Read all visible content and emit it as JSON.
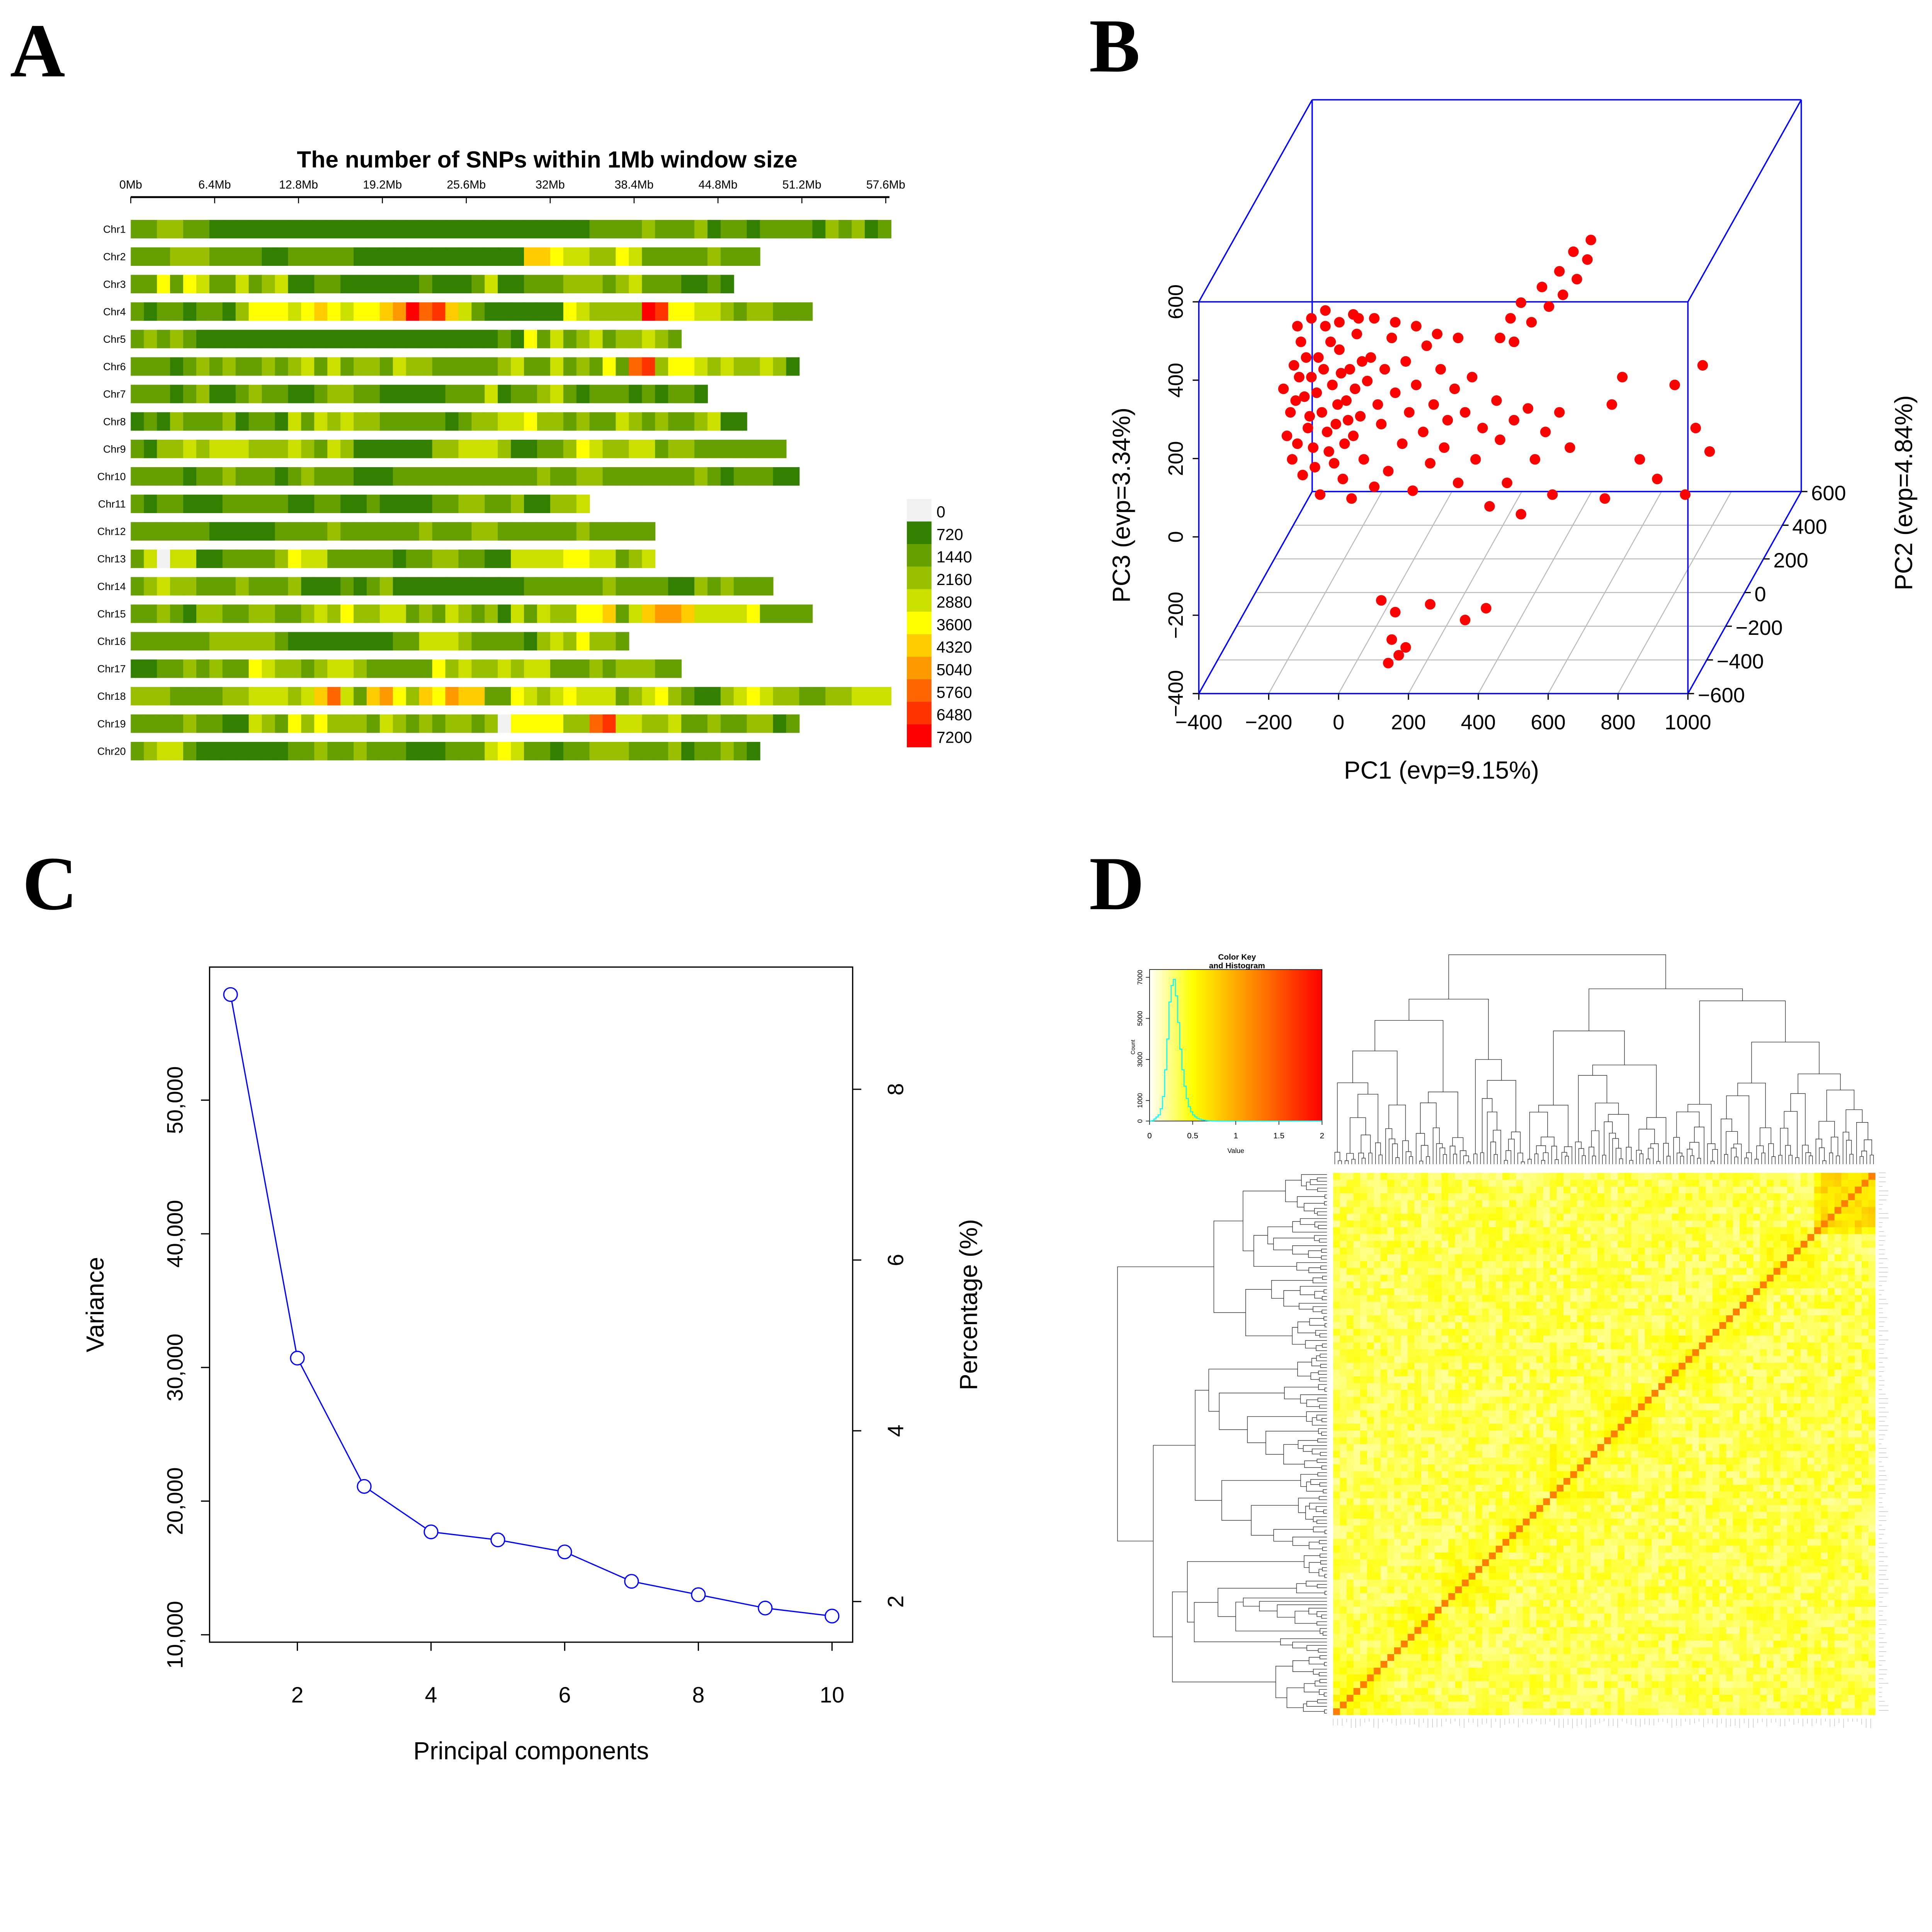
{
  "panels": {
    "a": "A",
    "b": "B",
    "c": "C",
    "d": "D"
  },
  "chart_data": [
    {
      "type": "heatmap",
      "panel": "A",
      "title": "The number of SNPs within 1Mb window size",
      "x_ticks": [
        "0Mb",
        "6.4Mb",
        "12.8Mb",
        "19.2Mb",
        "25.6Mb",
        "32Mb",
        "38.4Mb",
        "44.8Mb",
        "51.2Mb",
        "57.6Mb"
      ],
      "x_tick_values_mb": [
        0,
        6.4,
        12.8,
        19.2,
        25.6,
        32,
        38.4,
        44.8,
        51.2,
        57.6
      ],
      "window_mb": 1,
      "legend": {
        "labels": [
          "0",
          "720",
          "1440",
          "2160",
          "2880",
          "3600",
          "4320",
          "5040",
          "5760",
          "6480",
          "7200"
        ],
        "colors": [
          "#f2f2f2",
          "#338000",
          "#66a000",
          "#99c000",
          "#cce000",
          "#ffff00",
          "#ffcc00",
          "#ff9900",
          "#ff6600",
          "#ff3300",
          "#ff0000"
        ]
      },
      "level_encoding": "one character per 1Mb window; digit = legend level index, a = 10",
      "chromosomes": [
        {
          "name": "Chr1",
          "bins": "2233221111111111111111111111111111122223222312212222132312"
        },
        {
          "name": "Chr2",
          "bins": "222333222211222221111111111111665443354222223222"
        },
        {
          "name": "Chr3",
          "bins": "2252542242341122111111211124112223332342221121"
        },
        {
          "name": "Chr4",
          "bins": "212212213555456545567a89642111111543333a955443233222"
        },
        {
          "name": "Chr5",
          "bins": "232321111111111111111111111121524234233432"
        },
        {
          "name": "Chr6",
          "bins": "222123232232342423324332222234224232528935543433431"
        },
        {
          "name": "Chr7",
          "bins": "22212311232211233221111122241223421222121221"
        },
        {
          "name": "Chr8",
          "bins": "12132223122142434332222212334453323224323223411"
        },
        {
          "name": "Chr9",
          "bins": "21334344433343243111111334443112235433442332222222"
        },
        {
          "name": "Chr10",
          "bins": "222212232221232221112222222222232233222222232122211"
        },
        {
          "name": "Chr11",
          "bins": "21221112222211221121111223322311334"
        },
        {
          "name": "Chr12",
          "bins": "2222221111122223222222322233222222322222"
        },
        {
          "name": "Chr13",
          "bins": "2404411222235442222212233221144445544234"
        },
        {
          "name": "Chr14",
          "bins": "2343322232223111212311111111112222223222211323222"
        },
        {
          "name": "Chr15",
          "bins": "2232133223322343533442324323142433556246776444452222"
        },
        {
          "name": "Chr16",
          "bins": "22222233333211111111224443222213435332"
        },
        {
          "name": "Chr17",
          "bins": "112232322543323443222225343343442223233322"
        },
        {
          "name": "Chr18",
          "bins": "3332222334443468426753657662254345444234532113454332233444"
        },
        {
          "name": "Chr19",
          "bins": "222232211432535333243232332305555338944334223223312"
        },
        {
          "name": "Chr20",
          "bins": "234421111111223223222111222454221223332223122321"
        }
      ]
    },
    {
      "type": "scatter",
      "panel": "B",
      "subtype": "3d",
      "xlabel": "PC1 (evp=9.15%)",
      "ylabel": "PC2 (evp=4.84%)",
      "zlabel": "PC3 (evp=3.34%)",
      "xlim": [
        -400,
        1000
      ],
      "ylim": [
        -600,
        600
      ],
      "zlim": [
        -400,
        600
      ],
      "x_ticks": [
        "−400",
        "−200",
        "0",
        "200",
        "400",
        "600",
        "800",
        "1000"
      ],
      "x_tick_values": [
        -400,
        -200,
        0,
        200,
        400,
        600,
        800,
        1000
      ],
      "y_ticks": [
        "−600",
        "−400",
        "−200",
        "0",
        "200",
        "400",
        "600"
      ],
      "y_tick_values": [
        -600,
        -400,
        -200,
        0,
        200,
        400,
        600
      ],
      "z_ticks": [
        "−400",
        "−200",
        "0",
        "200",
        "400",
        "600"
      ],
      "z_tick_values": [
        -400,
        -200,
        0,
        200,
        400,
        600
      ],
      "point_color": "#ff0000",
      "box_color": "#0000ff",
      "points_pc1_pc2_pc3": [
        [
          -320,
          0,
          120
        ],
        [
          -300,
          0,
          60
        ],
        [
          -290,
          0,
          180
        ],
        [
          -280,
          0,
          -20
        ],
        [
          -270,
          0,
          240
        ],
        [
          -260,
          0,
          100
        ],
        [
          -250,
          0,
          20
        ],
        [
          -240,
          0,
          150
        ],
        [
          -230,
          0,
          -80
        ],
        [
          -220,
          0,
          200
        ],
        [
          -210,
          0,
          60
        ],
        [
          -200,
          0,
          280
        ],
        [
          -190,
          0,
          -40
        ],
        [
          -180,
          0,
          130
        ],
        [
          -170,
          0,
          30
        ],
        [
          -160,
          0,
          220
        ],
        [
          -150,
          0,
          -110
        ],
        [
          -140,
          0,
          90
        ],
        [
          -130,
          0,
          170
        ],
        [
          -120,
          0,
          0
        ],
        [
          -110,
          0,
          260
        ],
        [
          -100,
          0,
          50
        ],
        [
          -90,
          0,
          -60
        ],
        [
          -80,
          0,
          140
        ],
        [
          -70,
          0,
          200
        ],
        [
          -60,
          0,
          -130
        ],
        [
          -50,
          0,
          80
        ],
        [
          -40,
          0,
          30
        ],
        [
          -30,
          0,
          170
        ],
        [
          -20,
          0,
          -90
        ],
        [
          -10,
          0,
          250
        ],
        [
          0,
          0,
          110
        ],
        [
          20,
          0,
          -20
        ],
        [
          30,
          0,
          190
        ],
        [
          40,
          0,
          60
        ],
        [
          50,
          0,
          -140
        ],
        [
          60,
          0,
          130
        ],
        [
          80,
          0,
          10
        ],
        [
          90,
          0,
          230
        ],
        [
          100,
          0,
          -70
        ],
        [
          110,
          0,
          80
        ],
        [
          130,
          0,
          170
        ],
        [
          140,
          0,
          -30
        ],
        [
          150,
          0,
          40
        ],
        [
          170,
          0,
          120
        ],
        [
          180,
          0,
          -120
        ],
        [
          200,
          0,
          60
        ],
        [
          220,
          0,
          150
        ],
        [
          230,
          0,
          -60
        ],
        [
          250,
          0,
          20
        ],
        [
          270,
          0,
          -180
        ],
        [
          290,
          0,
          90
        ],
        [
          300,
          0,
          -10
        ],
        [
          320,
          0,
          -120
        ],
        [
          340,
          0,
          40
        ],
        [
          360,
          0,
          -200
        ],
        [
          380,
          0,
          70
        ],
        [
          400,
          0,
          -60
        ],
        [
          430,
          0,
          10
        ],
        [
          450,
          0,
          -150
        ],
        [
          470,
          0,
          60
        ],
        [
          500,
          0,
          -30
        ],
        [
          -310,
          0,
          0
        ],
        [
          -295,
          0,
          -60
        ],
        [
          -285,
          0,
          90
        ],
        [
          -275,
          0,
          150
        ],
        [
          -265,
          0,
          -100
        ],
        [
          -255,
          0,
          200
        ],
        [
          -245,
          0,
          50
        ],
        [
          -235,
          0,
          -30
        ],
        [
          -225,
          0,
          110
        ],
        [
          -215,
          0,
          -150
        ],
        [
          -205,
          0,
          170
        ],
        [
          -195,
          0,
          10
        ],
        [
          -185,
          0,
          240
        ],
        [
          -175,
          0,
          -70
        ],
        [
          -165,
          0,
          80
        ],
        [
          -155,
          0,
          160
        ],
        [
          -145,
          0,
          -20
        ],
        [
          -135,
          0,
          40
        ],
        [
          -125,
          0,
          -160
        ],
        [
          -115,
          0,
          120
        ],
        [
          -105,
          0,
          300
        ],
        [
          -95,
          0,
          190
        ],
        [
          330,
          0,
          300
        ],
        [
          360,
          0,
          340
        ],
        [
          390,
          0,
          290
        ],
        [
          420,
          0,
          380
        ],
        [
          440,
          0,
          330
        ],
        [
          470,
          0,
          420
        ],
        [
          480,
          0,
          360
        ],
        [
          510,
          0,
          470
        ],
        [
          520,
          0,
          400
        ],
        [
          550,
          0,
          450
        ],
        [
          560,
          0,
          500
        ],
        [
          300,
          0,
          250
        ],
        [
          340,
          0,
          240
        ],
        [
          620,
          0,
          80
        ],
        [
          650,
          0,
          150
        ],
        [
          700,
          0,
          -60
        ],
        [
          750,
          0,
          -110
        ],
        [
          800,
          0,
          130
        ],
        [
          830,
          0,
          -150
        ],
        [
          860,
          0,
          20
        ],
        [
          880,
          0,
          180
        ],
        [
          900,
          0,
          -40
        ],
        [
          600,
          0,
          -160
        ],
        [
          -40,
          0,
          -420
        ],
        [
          0,
          0,
          -450
        ],
        [
          100,
          0,
          -430
        ],
        [
          200,
          0,
          -470
        ],
        [
          260,
          0,
          -440
        ],
        [
          -10,
          0,
          -520
        ],
        [
          10,
          0,
          -560
        ],
        [
          30,
          0,
          -540
        ],
        [
          -20,
          0,
          -580
        ],
        [
          -280,
          0,
          280
        ],
        [
          -240,
          0,
          300
        ],
        [
          -200,
          0,
          320
        ],
        [
          -160,
          0,
          290
        ],
        [
          -120,
          0,
          310
        ],
        [
          -60,
          0,
          300
        ],
        [
          0,
          0,
          290
        ],
        [
          60,
          0,
          280
        ],
        [
          120,
          0,
          260
        ],
        [
          180,
          0,
          250
        ]
      ]
    },
    {
      "type": "line",
      "panel": "C",
      "xlabel": "Principal components",
      "ylabel": "Variance",
      "y2label": "Percentage (%)",
      "x": [
        1,
        2,
        3,
        4,
        5,
        6,
        7,
        8,
        9,
        10
      ],
      "series": [
        {
          "name": "Variance",
          "values": [
            57900,
            30700,
            21100,
            17700,
            17100,
            16200,
            14000,
            13000,
            12000,
            11400
          ],
          "color": "#0000ff"
        }
      ],
      "x_ticks": [
        "2",
        "4",
        "6",
        "8",
        "10"
      ],
      "x_tick_values": [
        2,
        4,
        6,
        8,
        10
      ],
      "y_ticks": [
        "10,000",
        "20,000",
        "30,000",
        "40,000",
        "50,000"
      ],
      "y_tick_values": [
        10000,
        20000,
        30000,
        40000,
        50000
      ],
      "y2_ticks": [
        "2",
        "4",
        "6",
        "8"
      ],
      "y2_tick_values": [
        2,
        4,
        6,
        8
      ],
      "xlim": [
        0.65,
        10.35
      ],
      "ylim": [
        9450,
        59300
      ]
    },
    {
      "type": "heatmap",
      "panel": "D",
      "description_kind": "clustered kinship heatmap with row/column dendrograms",
      "color_scale": {
        "min": 0,
        "max": 2,
        "colors": [
          "#ffffff",
          "#ffff00",
          "#ff0000"
        ]
      },
      "key": {
        "title_line1": "Color Key",
        "title_line2": "and Histogram",
        "xlabel": "Value",
        "ylabel": "Count",
        "x_ticks": [
          "0",
          "0.5",
          "1",
          "1.5",
          "2"
        ],
        "x_tick_values": [
          0,
          0.5,
          1,
          1.5,
          2
        ],
        "y_ticks": [
          "0",
          "1000",
          "3000",
          "5000",
          "7000"
        ],
        "y_tick_values": [
          0,
          1000,
          3000,
          5000,
          7000
        ],
        "ylim": [
          0,
          7200
        ],
        "histogram_color": "#00ffff",
        "bin_width": 0.025,
        "counts": [
          0,
          20,
          100,
          200,
          300,
          600,
          1200,
          2500,
          4000,
          5800,
          6600,
          6900,
          6100,
          4800,
          3500,
          2500,
          1700,
          1100,
          700,
          450,
          300,
          200,
          130,
          90,
          60,
          40,
          25,
          15,
          10,
          5,
          2,
          0
        ]
      }
    }
  ]
}
